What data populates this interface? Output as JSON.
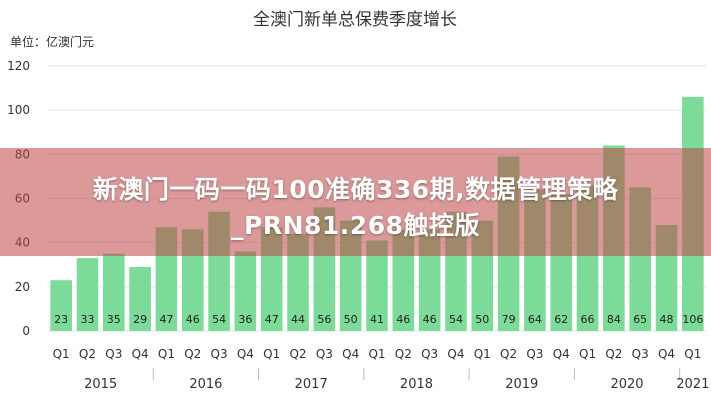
{
  "chart_data": {
    "type": "bar",
    "title": "全澳门新单总保费季度增长",
    "ylabel": "单位：亿澳门元",
    "xlabel": "",
    "ylim": [
      0,
      120
    ],
    "yticks": [
      0,
      20,
      40,
      60,
      80,
      100,
      120
    ],
    "grid": true,
    "bar_color": "#7ddb9a",
    "quarters": [
      "Q1",
      "Q2",
      "Q3",
      "Q4",
      "Q1",
      "Q2",
      "Q3",
      "Q4",
      "Q1",
      "Q2",
      "Q3",
      "Q4",
      "Q1",
      "Q2",
      "Q3",
      "Q4",
      "Q1",
      "Q2",
      "Q3",
      "Q4",
      "Q1",
      "Q2",
      "Q3",
      "Q4",
      "Q1"
    ],
    "years": [
      {
        "label": "2015",
        "span": 4
      },
      {
        "label": "2016",
        "span": 4
      },
      {
        "label": "2017",
        "span": 4
      },
      {
        "label": "2018",
        "span": 4
      },
      {
        "label": "2019",
        "span": 4
      },
      {
        "label": "2020",
        "span": 4
      },
      {
        "label": "2021",
        "span": 1
      }
    ],
    "values": [
      23,
      33,
      35,
      29,
      47,
      46,
      54,
      36,
      47,
      44,
      56,
      50,
      41,
      46,
      46,
      54,
      50,
      79,
      64,
      62,
      66,
      84,
      65,
      48,
      106
    ]
  },
  "banner": {
    "line1": "新澳门一码一码100准确336期,数据管理策略",
    "line2": "_PRN81.268触控版"
  }
}
